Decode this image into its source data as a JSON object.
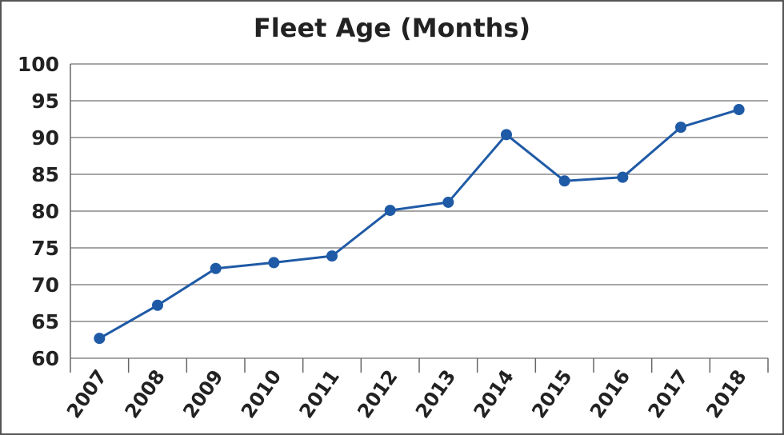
{
  "chart_data": {
    "type": "line",
    "title": "Fleet Age (Months)",
    "xlabel": "",
    "ylabel": "",
    "categories": [
      "2007",
      "2008",
      "2009",
      "2010",
      "2011",
      "2012",
      "2013",
      "2014",
      "2015",
      "2016",
      "2017",
      "2018"
    ],
    "series": [
      {
        "values": [
          62.7,
          67.2,
          72.2,
          73.0,
          73.9,
          80.1,
          81.2,
          90.4,
          84.1,
          84.6,
          91.4,
          93.8
        ]
      }
    ],
    "ylim": [
      60,
      100
    ],
    "yticks": [
      60,
      65,
      70,
      75,
      80,
      85,
      90,
      95,
      100
    ],
    "grid": true,
    "line_color": "#1f5aa6",
    "grid_color": "#888888"
  }
}
